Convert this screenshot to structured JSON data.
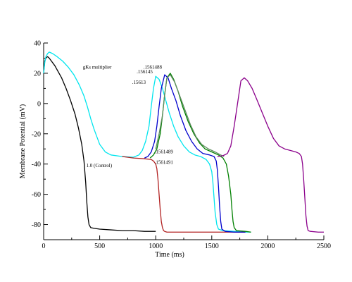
{
  "chart_data": {
    "type": "line",
    "xlabel": "Time (ms)",
    "ylabel": "Membrane Potential (mV)",
    "xlim": [
      0,
      2500
    ],
    "ylim": [
      -90,
      40
    ],
    "x_ticks": [
      "0",
      "500",
      "1000",
      "1500",
      "2000",
      "2500"
    ],
    "y_ticks": [
      "40",
      "20",
      "0",
      "-20",
      "-40",
      "-60",
      "-80"
    ],
    "grid": false,
    "legend": "none",
    "annotations": [
      {
        "text": "gKs multiplier",
        "x": 350,
        "y": 23
      },
      {
        "text": ".1561488",
        "x": 890,
        "y": 23
      },
      {
        "text": ".156145",
        "x": 830,
        "y": 20
      },
      {
        "text": ".15613",
        "x": 790,
        "y": 13
      },
      {
        "text": ".1561489",
        "x": 990,
        "y": -33
      },
      {
        "text": ".1561491",
        "x": 990,
        "y": -40
      },
      {
        "text": "1.0 (Control)",
        "x": 380,
        "y": -42
      }
    ],
    "series": [
      {
        "color": "#000000",
        "x": [
          0,
          5,
          10,
          20,
          35,
          50,
          70,
          100,
          130,
          160,
          200,
          240,
          280,
          310,
          340,
          360,
          375,
          385,
          395,
          405,
          420,
          450,
          500,
          600,
          700,
          800,
          900,
          1000
        ],
        "y": [
          20,
          24,
          28,
          30,
          31,
          30,
          28,
          25,
          21,
          17,
          10,
          2,
          -7,
          -16,
          -27,
          -38,
          -52,
          -65,
          -75,
          -80,
          -82,
          -82.5,
          -83,
          -83.5,
          -84,
          -84,
          -84.5,
          -84.5
        ]
      },
      {
        "color": "#00e5ee",
        "x": [
          0,
          10,
          20,
          35,
          50,
          80,
          120,
          170,
          220,
          270,
          320,
          360,
          390,
          420,
          450,
          500,
          550,
          600,
          700,
          800,
          850,
          880,
          910,
          940,
          960,
          980,
          1000,
          1030,
          1060,
          1090,
          1120,
          1160,
          1200,
          1250,
          1300,
          1350,
          1400,
          1450,
          1480,
          1500,
          1510,
          1520,
          1530,
          1545,
          1560,
          1600,
          1700,
          1800,
          1850
        ],
        "y": [
          20,
          27,
          31,
          33,
          34,
          33,
          31,
          28,
          24,
          19,
          12,
          5,
          -2,
          -10,
          -17,
          -27,
          -32,
          -34,
          -35,
          -35.5,
          -34,
          -31,
          -25,
          -15,
          -2,
          10,
          18,
          16,
          10,
          2,
          -6,
          -15,
          -22,
          -28,
          -32,
          -34,
          -35,
          -37,
          -40,
          -45,
          -52,
          -62,
          -72,
          -80,
          -83,
          -84,
          -84.5,
          -85,
          -85
        ]
      },
      {
        "color": "#b22222",
        "x": [
          700,
          800,
          900,
          960,
          980,
          1000,
          1010,
          1020,
          1030,
          1040,
          1050,
          1060,
          1070,
          1080,
          1100,
          1150,
          1200,
          1300,
          1400,
          1500,
          1600,
          1700,
          1800
        ],
        "y": [
          -35,
          -36,
          -36.5,
          -37,
          -38,
          -40,
          -43,
          -50,
          -60,
          -70,
          -78,
          -82,
          -84,
          -84.5,
          -85,
          -85,
          -85,
          -85,
          -85,
          -85,
          -85,
          -85,
          -85
        ]
      },
      {
        "color": "#0000cd",
        "x": [
          900,
          930,
          960,
          990,
          1010,
          1030,
          1050,
          1080,
          1110,
          1140,
          1180,
          1220,
          1270,
          1320,
          1370,
          1420,
          1480,
          1520,
          1540,
          1550,
          1560,
          1570,
          1580,
          1590,
          1620,
          1700,
          1800
        ],
        "y": [
          -36,
          -35,
          -32,
          -25,
          -15,
          -2,
          10,
          19,
          17,
          10,
          2,
          -8,
          -18,
          -25,
          -30,
          -33,
          -34,
          -35,
          -38,
          -44,
          -55,
          -68,
          -78,
          -83,
          -84.5,
          -85,
          -85
        ]
      },
      {
        "color": "#008000",
        "x": [
          950,
          980,
          1010,
          1040,
          1060,
          1080,
          1100,
          1130,
          1160,
          1200,
          1240,
          1290,
          1340,
          1390,
          1440,
          1500,
          1560,
          1600,
          1630,
          1650,
          1670,
          1680,
          1690,
          1700,
          1720,
          1800,
          1850
        ],
        "y": [
          -36,
          -34,
          -30,
          -20,
          -8,
          6,
          17,
          20,
          16,
          8,
          -2,
          -12,
          -20,
          -26,
          -30,
          -32,
          -34,
          -36,
          -40,
          -48,
          -60,
          -70,
          -78,
          -82,
          -84,
          -84.5,
          -85
        ]
      },
      {
        "color": "#5f8c5f",
        "x": [
          1000,
          1030,
          1060,
          1080,
          1100,
          1130,
          1170,
          1210,
          1260,
          1310,
          1360,
          1410,
          1470,
          1530,
          1580,
          1610
        ],
        "y": [
          -30,
          -20,
          -8,
          6,
          17,
          19,
          14,
          6,
          -4,
          -14,
          -22,
          -27,
          -30,
          -32,
          -34,
          -35
        ]
      },
      {
        "color": "#8b008b",
        "x": [
          1550,
          1600,
          1640,
          1670,
          1700,
          1730,
          1760,
          1790,
          1820,
          1860,
          1900,
          1950,
          2000,
          2050,
          2100,
          2150,
          2200,
          2250,
          2280,
          2300,
          2310,
          2320,
          2330,
          2340,
          2350,
          2360,
          2380,
          2450,
          2500
        ],
        "y": [
          -35,
          -34.5,
          -33,
          -28,
          -15,
          0,
          15,
          17,
          15,
          10,
          3,
          -6,
          -15,
          -23,
          -28,
          -30,
          -31,
          -32,
          -33,
          -35,
          -40,
          -50,
          -62,
          -74,
          -81,
          -84,
          -84.5,
          -85,
          -85
        ]
      }
    ]
  }
}
